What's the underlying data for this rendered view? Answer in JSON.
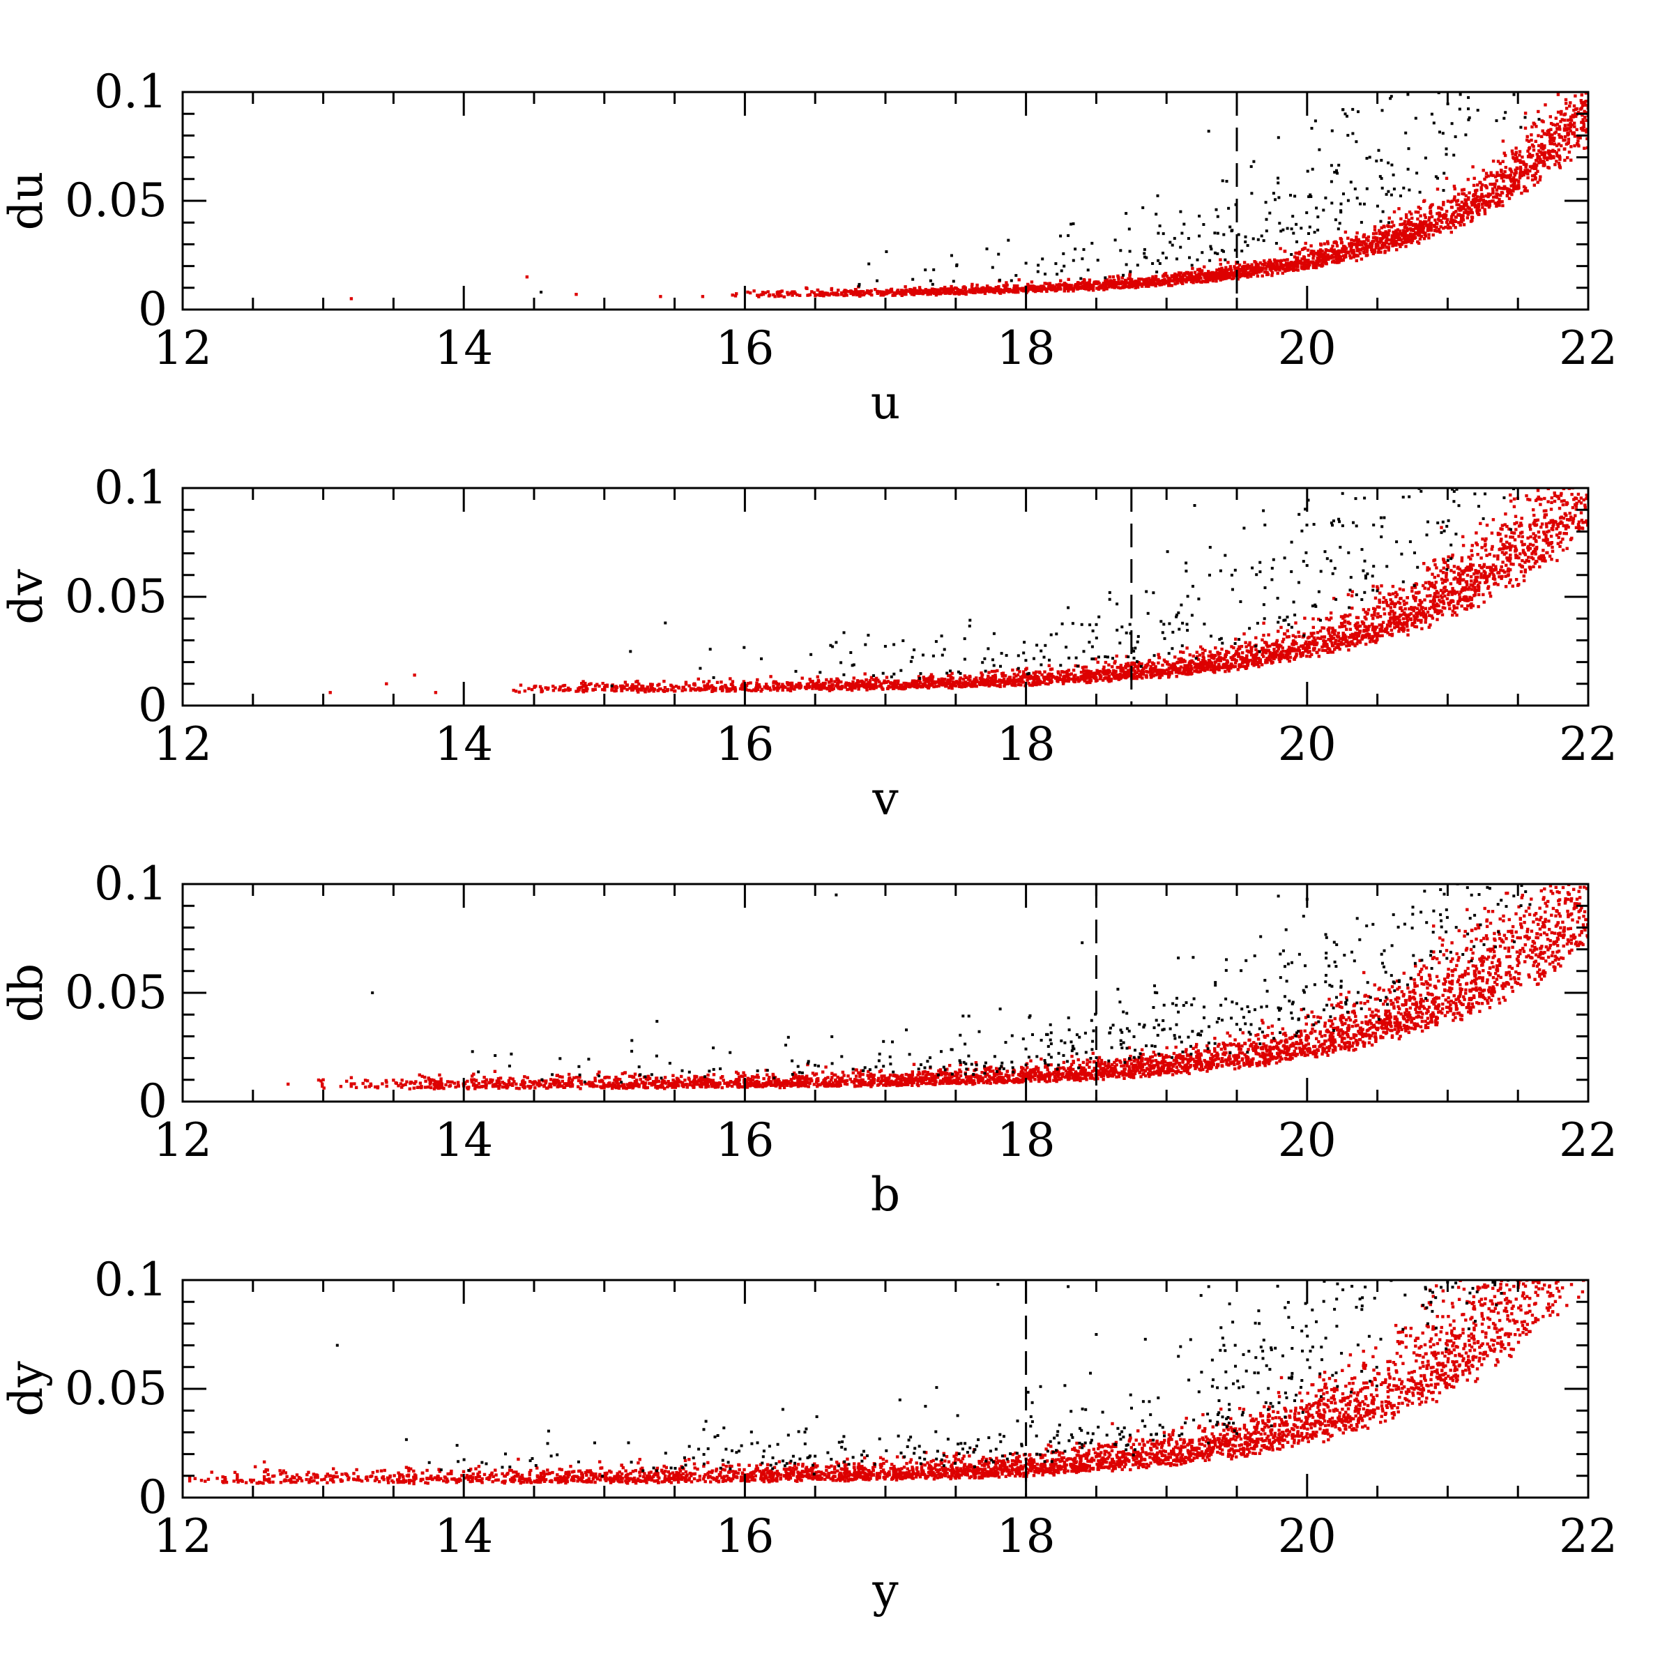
{
  "figure": {
    "colors": {
      "accepted": "#dd0000",
      "rejected": "#000000",
      "frame": "#000000"
    }
  },
  "chart_data": [
    {
      "type": "scatter",
      "title": "",
      "xlabel": "u",
      "ylabel": "du",
      "xlim": [
        12,
        22
      ],
      "ylim": [
        0,
        0.1
      ],
      "xticks": [
        12,
        14,
        16,
        18,
        20,
        22
      ],
      "yticks": [
        0,
        0.05,
        0.1
      ],
      "xtick_labels": [
        "12",
        "14",
        "16",
        "18",
        "20",
        "22"
      ],
      "ytick_labels": [
        "0",
        "0.05",
        "0.1"
      ],
      "cut": 19.5,
      "grid": false,
      "envelope": {
        "x_start": 15.9,
        "x_end": 22.0,
        "floor": 0.0055,
        "y_at_20": 0.019,
        "y_at_22": 0.078,
        "spread": 0.35
      },
      "series": [
        {
          "role": "accepted",
          "color": "#dd0000",
          "count": 2600
        },
        {
          "role": "rejected",
          "color": "#000000",
          "count": 360
        }
      ],
      "sparse_points": [
        [
          13.2,
          0.005
        ],
        [
          14.45,
          0.015
        ],
        [
          14.8,
          0.007
        ],
        [
          15.4,
          0.006
        ],
        [
          15.7,
          0.006
        ]
      ],
      "notable_rejected": [
        [
          14.55,
          0.008
        ],
        [
          20.6,
          0.098
        ],
        [
          19.3,
          0.082
        ],
        [
          18.3,
          0.034
        ],
        [
          19.1,
          0.045
        ]
      ]
    },
    {
      "type": "scatter",
      "title": "",
      "xlabel": "v",
      "ylabel": "dv",
      "xlim": [
        12,
        22
      ],
      "ylim": [
        0,
        0.1
      ],
      "xticks": [
        12,
        14,
        16,
        18,
        20,
        22
      ],
      "yticks": [
        0,
        0.05,
        0.1
      ],
      "xtick_labels": [
        "12",
        "14",
        "16",
        "18",
        "20",
        "22"
      ],
      "ytick_labels": [
        "0",
        "0.05",
        "0.1"
      ],
      "cut": 18.75,
      "grid": false,
      "envelope": {
        "x_start": 14.3,
        "x_end": 22.0,
        "floor": 0.006,
        "y_at_20": 0.022,
        "y_at_22": 0.082,
        "spread": 0.55
      },
      "series": [
        {
          "role": "accepted",
          "color": "#dd0000",
          "count": 3000
        },
        {
          "role": "rejected",
          "color": "#000000",
          "count": 420
        }
      ],
      "sparse_points": [
        [
          13.05,
          0.006
        ],
        [
          13.45,
          0.01
        ],
        [
          13.65,
          0.014
        ],
        [
          13.8,
          0.006
        ]
      ],
      "notable_rejected": [
        [
          19.7,
          0.083
        ],
        [
          19.2,
          0.092
        ],
        [
          17.4,
          0.032
        ],
        [
          18.3,
          0.045
        ],
        [
          20.4,
          0.062
        ]
      ]
    },
    {
      "type": "scatter",
      "title": "",
      "xlabel": "b",
      "ylabel": "db",
      "xlim": [
        12,
        22
      ],
      "ylim": [
        0,
        0.1
      ],
      "xticks": [
        12,
        14,
        16,
        18,
        20,
        22
      ],
      "yticks": [
        0,
        0.05,
        0.1
      ],
      "xtick_labels": [
        "12",
        "14",
        "16",
        "18",
        "20",
        "22"
      ],
      "ytick_labels": [
        "0",
        "0.05",
        "0.1"
      ],
      "cut": 18.5,
      "grid": false,
      "envelope": {
        "x_start": 12.95,
        "x_end": 22.0,
        "floor": 0.0058,
        "y_at_20": 0.02,
        "y_at_22": 0.072,
        "spread": 0.75
      },
      "series": [
        {
          "role": "accepted",
          "color": "#dd0000",
          "count": 3400
        },
        {
          "role": "rejected",
          "color": "#000000",
          "count": 520
        }
      ],
      "sparse_points": [
        [
          12.75,
          0.008
        ],
        [
          13.2,
          0.011
        ],
        [
          13.0,
          0.01
        ]
      ],
      "notable_rejected": [
        [
          13.35,
          0.05
        ],
        [
          16.65,
          0.095
        ],
        [
          20.0,
          0.093
        ],
        [
          18.4,
          0.073
        ],
        [
          21.3,
          0.098
        ]
      ]
    },
    {
      "type": "scatter",
      "title": "",
      "xlabel": "y",
      "ylabel": "dy",
      "xlim": [
        12,
        22
      ],
      "ylim": [
        0,
        0.1
      ],
      "xticks": [
        12,
        14,
        16,
        18,
        20,
        22
      ],
      "yticks": [
        0,
        0.05,
        0.1
      ],
      "xtick_labels": [
        "12",
        "14",
        "16",
        "18",
        "20",
        "22"
      ],
      "ytick_labels": [
        "0",
        "0.05",
        "0.1"
      ],
      "cut": 18.0,
      "grid": false,
      "envelope": {
        "x_start": 12.0,
        "x_end": 22.0,
        "floor": 0.0065,
        "y_at_20": 0.025,
        "y_at_22": 0.1,
        "spread": 0.85
      },
      "series": [
        {
          "role": "accepted",
          "color": "#dd0000",
          "count": 3600
        },
        {
          "role": "rejected",
          "color": "#000000",
          "count": 560
        }
      ],
      "sparse_points": [
        [
          12.05,
          0.009
        ],
        [
          12.3,
          0.008
        ],
        [
          12.6,
          0.008
        ],
        [
          12.9,
          0.007
        ]
      ],
      "notable_rejected": [
        [
          13.1,
          0.07
        ],
        [
          17.8,
          0.098
        ],
        [
          18.3,
          0.097
        ],
        [
          19.3,
          0.097
        ],
        [
          18.5,
          0.075
        ]
      ]
    }
  ]
}
